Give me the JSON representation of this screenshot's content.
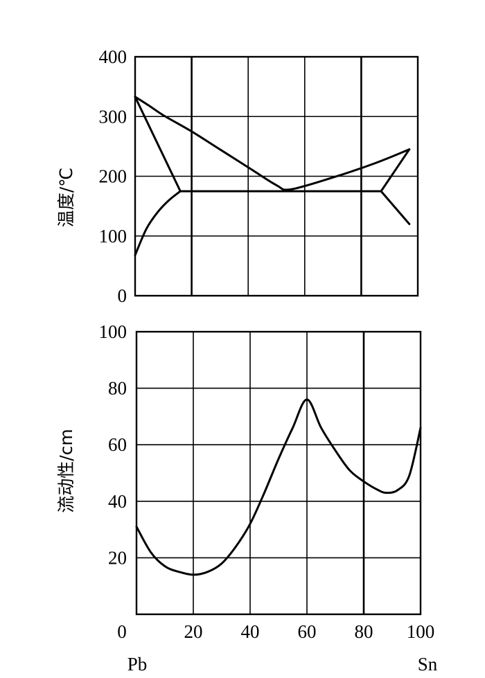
{
  "chart_data": [
    {
      "type": "line",
      "title": "",
      "xlabel": "",
      "ylabel": "温度/℃",
      "xlim": [
        0,
        100
      ],
      "ylim": [
        0,
        400
      ],
      "y_ticks": [
        "0",
        "100",
        "200",
        "300",
        "400"
      ],
      "grid": true,
      "series": [
        {
          "values": [
            [
              0,
              333
            ],
            [
              5,
              318
            ],
            [
              10,
              302
            ],
            [
              20,
              275
            ],
            [
              30,
              245
            ],
            [
              40,
              215
            ],
            [
              50,
              185
            ],
            [
              55,
              178
            ],
            [
              70,
              198
            ],
            [
              85,
              222
            ],
            [
              97,
              245
            ]
          ]
        },
        {
          "values": [
            [
              0,
              333
            ],
            [
              16,
              175
            ]
          ]
        },
        {
          "values": [
            [
              0,
              68
            ],
            [
              4,
              112
            ],
            [
              8,
              140
            ],
            [
              12,
              160
            ],
            [
              16,
              175
            ]
          ]
        },
        {
          "values": [
            [
              16,
              175
            ],
            [
              87,
              175
            ]
          ]
        },
        {
          "values": [
            [
              87,
              175
            ],
            [
              97,
              245
            ]
          ]
        },
        {
          "values": [
            [
              87,
              175
            ],
            [
              97,
              120
            ]
          ]
        }
      ]
    },
    {
      "type": "line",
      "title": "",
      "xlabel": "",
      "ylabel": "流动性/cm",
      "xlim": [
        0,
        100
      ],
      "ylim": [
        0,
        100
      ],
      "x_ticks": [
        "0",
        "20",
        "40",
        "60",
        "80",
        "100"
      ],
      "y_ticks": [
        "20",
        "40",
        "60",
        "80",
        "100"
      ],
      "grid": true,
      "x_end_labels": {
        "left": "Pb",
        "right": "Sn"
      },
      "series": [
        {
          "values": [
            [
              0,
              31
            ],
            [
              5,
              22
            ],
            [
              10,
              17
            ],
            [
              15,
              15
            ],
            [
              20,
              14
            ],
            [
              25,
              15
            ],
            [
              30,
              18
            ],
            [
              35,
              24
            ],
            [
              40,
              32
            ],
            [
              45,
              43
            ],
            [
              50,
              55
            ],
            [
              55,
              66
            ],
            [
              60,
              76
            ],
            [
              65,
              66
            ],
            [
              70,
              58
            ],
            [
              75,
              51
            ],
            [
              80,
              47
            ],
            [
              85,
              44
            ],
            [
              88,
              43
            ],
            [
              92,
              44
            ],
            [
              96,
              49
            ],
            [
              100,
              66
            ]
          ]
        }
      ]
    }
  ]
}
